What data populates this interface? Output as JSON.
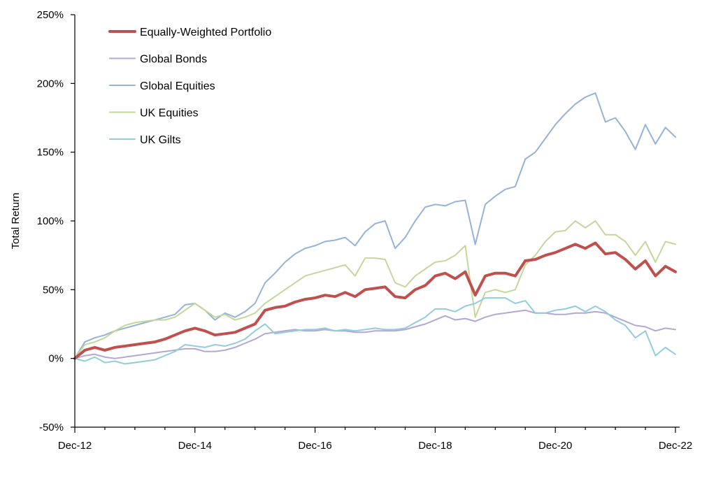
{
  "chart_data": {
    "type": "line",
    "title": "",
    "xlabel": "",
    "ylabel": "Total Return",
    "ylim": [
      -0.5,
      2.5
    ],
    "y_ticks": [
      "-50%",
      "0%",
      "50%",
      "100%",
      "150%",
      "200%",
      "250%"
    ],
    "y_tick_values": [
      -0.5,
      0,
      0.5,
      1,
      1.5,
      2,
      2.5
    ],
    "x_ticks": [
      "Dec-12",
      "Dec-14",
      "Dec-16",
      "Dec-18",
      "Dec-20",
      "Dec-22"
    ],
    "x_tick_values": [
      "2012-12",
      "2014-12",
      "2016-12",
      "2018-12",
      "2020-12",
      "2022-12"
    ],
    "x_range": [
      "2012-12",
      "2022-12"
    ],
    "grid": false,
    "legend_position": "top-left",
    "x": [
      "2012-12",
      "2013-02",
      "2013-04",
      "2013-06",
      "2013-08",
      "2013-10",
      "2013-12",
      "2014-02",
      "2014-04",
      "2014-06",
      "2014-08",
      "2014-10",
      "2014-12",
      "2015-02",
      "2015-04",
      "2015-06",
      "2015-08",
      "2015-10",
      "2015-12",
      "2016-02",
      "2016-04",
      "2016-06",
      "2016-08",
      "2016-10",
      "2016-12",
      "2017-02",
      "2017-04",
      "2017-06",
      "2017-08",
      "2017-10",
      "2017-12",
      "2018-02",
      "2018-04",
      "2018-06",
      "2018-08",
      "2018-10",
      "2018-12",
      "2019-02",
      "2019-04",
      "2019-06",
      "2019-08",
      "2019-10",
      "2019-12",
      "2020-02",
      "2020-04",
      "2020-06",
      "2020-08",
      "2020-10",
      "2020-12",
      "2021-02",
      "2021-04",
      "2021-06",
      "2021-08",
      "2021-10",
      "2021-12",
      "2022-02",
      "2022-04",
      "2022-06",
      "2022-08",
      "2022-10",
      "2022-12"
    ],
    "series": [
      {
        "name": "Equally-Weighted Portfolio",
        "color": "#c0504d",
        "width": 4,
        "values": [
          0.0,
          0.06,
          0.08,
          0.06,
          0.08,
          0.09,
          0.1,
          0.11,
          0.12,
          0.14,
          0.17,
          0.2,
          0.22,
          0.2,
          0.17,
          0.18,
          0.19,
          0.22,
          0.25,
          0.35,
          0.37,
          0.38,
          0.41,
          0.43,
          0.44,
          0.46,
          0.45,
          0.48,
          0.45,
          0.5,
          0.51,
          0.52,
          0.45,
          0.44,
          0.5,
          0.53,
          0.6,
          0.62,
          0.58,
          0.63,
          0.46,
          0.6,
          0.62,
          0.62,
          0.6,
          0.71,
          0.72,
          0.75,
          0.77,
          0.8,
          0.83,
          0.8,
          0.84,
          0.76,
          0.77,
          0.72,
          0.65,
          0.71,
          0.6,
          0.67,
          0.63
        ]
      },
      {
        "name": "Global Bonds",
        "color": "#b4a7d6",
        "width": 2,
        "values": [
          0.0,
          0.02,
          0.03,
          0.01,
          0.0,
          0.01,
          0.02,
          0.03,
          0.04,
          0.05,
          0.06,
          0.07,
          0.07,
          0.05,
          0.05,
          0.06,
          0.08,
          0.11,
          0.14,
          0.18,
          0.19,
          0.2,
          0.21,
          0.2,
          0.2,
          0.21,
          0.2,
          0.2,
          0.19,
          0.19,
          0.2,
          0.2,
          0.2,
          0.21,
          0.23,
          0.25,
          0.28,
          0.31,
          0.28,
          0.29,
          0.27,
          0.3,
          0.32,
          0.33,
          0.34,
          0.35,
          0.33,
          0.33,
          0.32,
          0.32,
          0.33,
          0.33,
          0.34,
          0.33,
          0.3,
          0.27,
          0.24,
          0.23,
          0.2,
          0.22,
          0.21
        ]
      },
      {
        "name": "Global Equities",
        "color": "#95b3d7",
        "width": 2,
        "values": [
          0.0,
          0.12,
          0.15,
          0.17,
          0.2,
          0.22,
          0.24,
          0.26,
          0.28,
          0.3,
          0.32,
          0.39,
          0.4,
          0.35,
          0.28,
          0.33,
          0.3,
          0.34,
          0.4,
          0.55,
          0.62,
          0.7,
          0.76,
          0.8,
          0.82,
          0.85,
          0.86,
          0.88,
          0.82,
          0.92,
          0.98,
          1.0,
          0.8,
          0.88,
          1.0,
          1.1,
          1.12,
          1.11,
          1.14,
          1.15,
          0.83,
          1.12,
          1.18,
          1.23,
          1.25,
          1.45,
          1.5,
          1.6,
          1.7,
          1.78,
          1.85,
          1.9,
          1.93,
          1.72,
          1.75,
          1.65,
          1.52,
          1.7,
          1.56,
          1.68,
          1.61
        ]
      },
      {
        "name": "UK Equities",
        "color": "#c4d79b",
        "width": 2,
        "values": [
          0.0,
          0.1,
          0.12,
          0.15,
          0.2,
          0.24,
          0.26,
          0.27,
          0.28,
          0.28,
          0.3,
          0.35,
          0.4,
          0.35,
          0.3,
          0.32,
          0.28,
          0.3,
          0.33,
          0.4,
          0.45,
          0.5,
          0.55,
          0.6,
          0.62,
          0.64,
          0.66,
          0.68,
          0.6,
          0.73,
          0.73,
          0.72,
          0.55,
          0.52,
          0.6,
          0.65,
          0.7,
          0.71,
          0.75,
          0.82,
          0.3,
          0.48,
          0.5,
          0.48,
          0.5,
          0.68,
          0.75,
          0.85,
          0.92,
          0.93,
          1.0,
          0.95,
          1.0,
          0.9,
          0.9,
          0.85,
          0.75,
          0.85,
          0.7,
          0.85,
          0.83
        ]
      },
      {
        "name": "UK Gilts",
        "color": "#92cddc",
        "width": 2,
        "values": [
          0.0,
          -0.02,
          0.01,
          -0.03,
          -0.02,
          -0.04,
          -0.03,
          -0.02,
          -0.01,
          0.02,
          0.05,
          0.1,
          0.09,
          0.08,
          0.1,
          0.09,
          0.11,
          0.14,
          0.2,
          0.25,
          0.18,
          0.19,
          0.2,
          0.21,
          0.21,
          0.22,
          0.2,
          0.21,
          0.2,
          0.21,
          0.22,
          0.21,
          0.21,
          0.22,
          0.26,
          0.3,
          0.36,
          0.36,
          0.34,
          0.38,
          0.4,
          0.44,
          0.44,
          0.44,
          0.4,
          0.42,
          0.33,
          0.33,
          0.35,
          0.36,
          0.38,
          0.34,
          0.38,
          0.34,
          0.28,
          0.24,
          0.15,
          0.2,
          0.02,
          0.08,
          0.03
        ]
      }
    ]
  }
}
